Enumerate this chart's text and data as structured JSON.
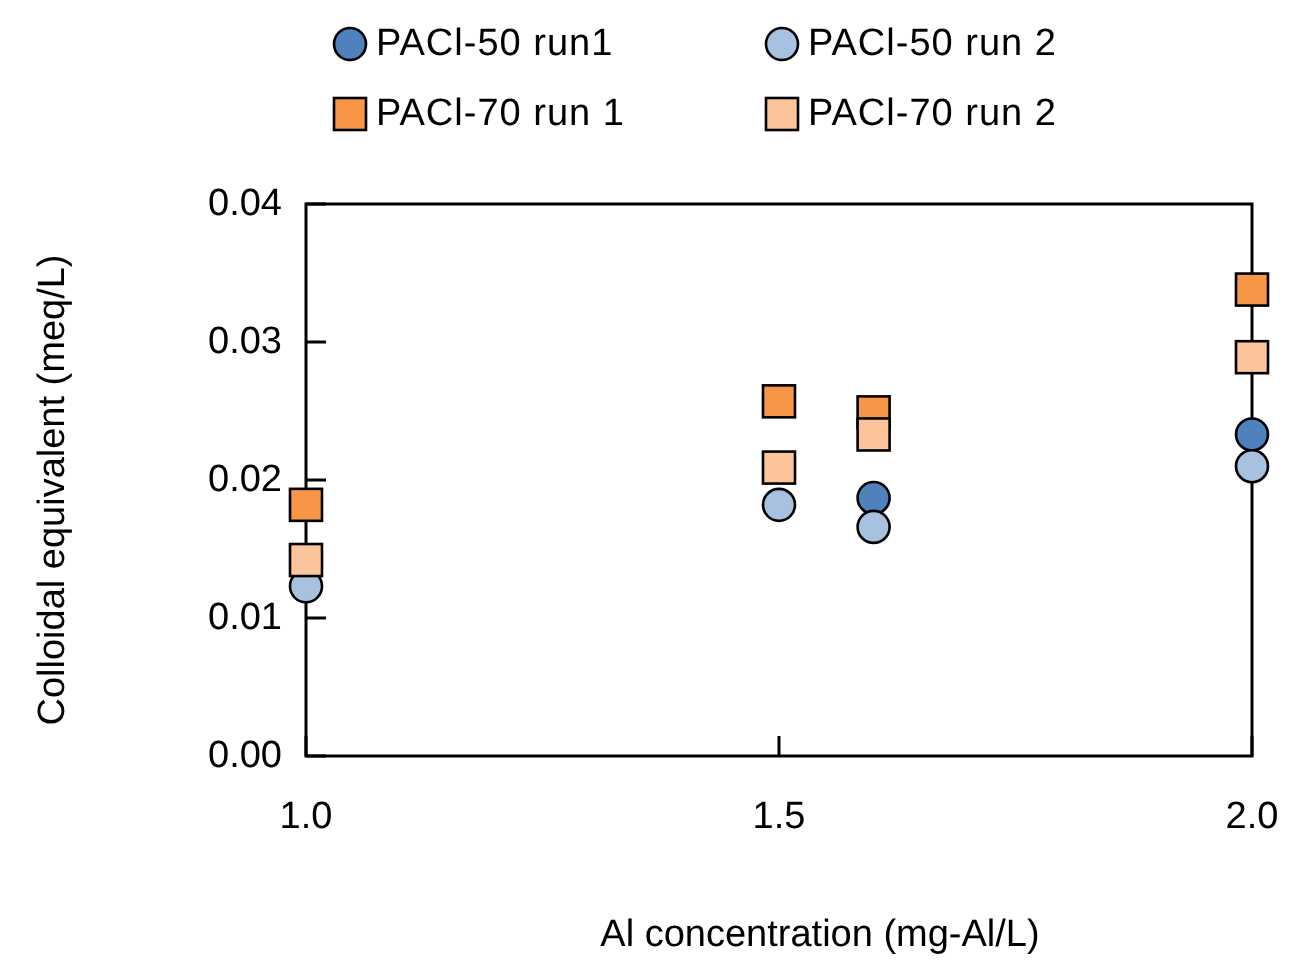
{
  "chart_data": {
    "type": "scatter",
    "xlabel": "Al concentration (mg-Al/L)",
    "ylabel": "Colloidal equivalent (meq/L)",
    "x": [
      1.0,
      1.5,
      1.6,
      2.0
    ],
    "xlim": [
      1.0,
      2.0
    ],
    "xticks": [
      {
        "value": 1.0,
        "label": "1.0"
      },
      {
        "value": 1.5,
        "label": "1.5"
      },
      {
        "value": 2.0,
        "label": "2.0"
      }
    ],
    "ylim": [
      0,
      0.04
    ],
    "yticks": [
      {
        "value": 0,
        "label": "0.00"
      },
      {
        "value": 0.01,
        "label": "0.01"
      },
      {
        "value": 0.02,
        "label": "0.02"
      },
      {
        "value": 0.03,
        "label": "0.03"
      },
      {
        "value": 0.04,
        "label": "0.04"
      }
    ],
    "grid": false,
    "legend": "top",
    "series": [
      {
        "name": "PACl-50 run1",
        "color": "#4f81bd",
        "marker": "circle",
        "values": [
          null,
          null,
          0.0187,
          0.0233
        ]
      },
      {
        "name": "PACl-50 run 2",
        "color": "#a9c1e0",
        "marker": "circle",
        "values": [
          0.0123,
          0.0182,
          0.0166,
          0.021
        ]
      },
      {
        "name": "PACl-70 run 1",
        "color": "#f79646",
        "marker": "square",
        "values": [
          0.0182,
          0.0257,
          0.0249,
          0.0338
        ]
      },
      {
        "name": "PACl-70 run 2",
        "color": "#fbc49a",
        "marker": "square",
        "values": [
          0.0142,
          0.0209,
          0.0233,
          0.0289
        ]
      }
    ]
  }
}
